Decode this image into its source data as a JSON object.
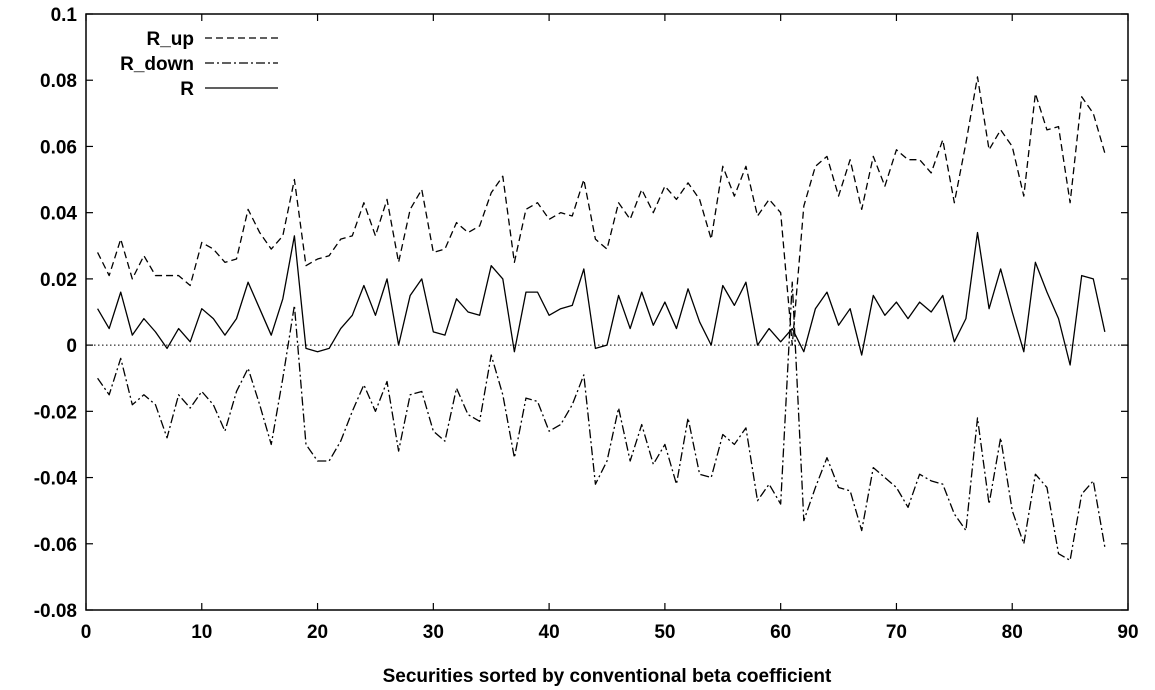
{
  "chart_data": {
    "type": "line",
    "title": "",
    "xlabel": "Securities sorted by conventional beta coefficient",
    "ylabel": "",
    "xlim": [
      0,
      90
    ],
    "ylim": [
      -0.08,
      0.1
    ],
    "xticks": [
      0,
      10,
      20,
      30,
      40,
      50,
      60,
      70,
      80,
      90
    ],
    "yticks": [
      -0.08,
      -0.06,
      -0.04,
      -0.02,
      0,
      0.02,
      0.04,
      0.06,
      0.08,
      0.1
    ],
    "xtick_labels": [
      "0",
      "10",
      "20",
      "30",
      "40",
      "50",
      "60",
      "70",
      "80",
      "90"
    ],
    "ytick_labels": [
      "-0.08",
      "-0.06",
      "-0.04",
      "-0.02",
      "0",
      "0.02",
      "0.04",
      "0.06",
      "0.08",
      "0.1"
    ],
    "grid": false,
    "legend_position": "top-left",
    "zero_line": true,
    "series": [
      {
        "name": "R_up",
        "style": "dashed",
        "color": "#000000",
        "x": [
          1,
          2,
          3,
          4,
          5,
          6,
          7,
          8,
          9,
          10,
          11,
          12,
          13,
          14,
          15,
          16,
          17,
          18,
          19,
          20,
          21,
          22,
          23,
          24,
          25,
          26,
          27,
          28,
          29,
          30,
          31,
          32,
          33,
          34,
          35,
          36,
          37,
          38,
          39,
          40,
          41,
          42,
          43,
          44,
          45,
          46,
          47,
          48,
          49,
          50,
          51,
          52,
          53,
          54,
          55,
          56,
          57,
          58,
          59,
          60,
          61,
          62,
          63,
          64,
          65,
          66,
          67,
          68,
          69,
          70,
          71,
          72,
          73,
          74,
          75,
          76,
          77,
          78,
          79,
          80,
          81,
          82,
          83,
          84,
          85,
          86,
          87,
          88
        ],
        "values": [
          0.028,
          0.021,
          0.032,
          0.02,
          0.027,
          0.021,
          0.021,
          0.021,
          0.018,
          0.031,
          0.029,
          0.025,
          0.026,
          0.041,
          0.034,
          0.029,
          0.033,
          0.05,
          0.024,
          0.026,
          0.027,
          0.032,
          0.033,
          0.043,
          0.033,
          0.044,
          0.025,
          0.041,
          0.047,
          0.028,
          0.029,
          0.037,
          0.034,
          0.036,
          0.046,
          0.051,
          0.025,
          0.041,
          0.043,
          0.038,
          0.04,
          0.039,
          0.05,
          0.032,
          0.029,
          0.043,
          0.038,
          0.047,
          0.04,
          0.048,
          0.044,
          0.049,
          0.044,
          0.032,
          0.054,
          0.045,
          0.054,
          0.039,
          0.044,
          0.04,
          0.0,
          0.042,
          0.054,
          0.057,
          0.045,
          0.056,
          0.041,
          0.057,
          0.048,
          0.059,
          0.056,
          0.056,
          0.052,
          0.062,
          0.043,
          0.061,
          0.081,
          0.059,
          0.065,
          0.06,
          0.045,
          0.076,
          0.065,
          0.066,
          0.043,
          0.075,
          0.07,
          0.058
        ]
      },
      {
        "name": "R_down",
        "style": "dashdot",
        "color": "#000000",
        "x": [
          1,
          2,
          3,
          4,
          5,
          6,
          7,
          8,
          9,
          10,
          11,
          12,
          13,
          14,
          15,
          16,
          17,
          18,
          19,
          20,
          21,
          22,
          23,
          24,
          25,
          26,
          27,
          28,
          29,
          30,
          31,
          32,
          33,
          34,
          35,
          36,
          37,
          38,
          39,
          40,
          41,
          42,
          43,
          44,
          45,
          46,
          47,
          48,
          49,
          50,
          51,
          52,
          53,
          54,
          55,
          56,
          57,
          58,
          59,
          60,
          61,
          62,
          63,
          64,
          65,
          66,
          67,
          68,
          69,
          70,
          71,
          72,
          73,
          74,
          75,
          76,
          77,
          78,
          79,
          80,
          81,
          82,
          83,
          84,
          85,
          86,
          87,
          88
        ],
        "values": [
          -0.01,
          -0.015,
          -0.004,
          -0.018,
          -0.015,
          -0.018,
          -0.028,
          -0.015,
          -0.019,
          -0.014,
          -0.018,
          -0.026,
          -0.014,
          -0.007,
          -0.018,
          -0.03,
          -0.01,
          0.012,
          -0.03,
          -0.035,
          -0.035,
          -0.029,
          -0.02,
          -0.012,
          -0.02,
          -0.011,
          -0.032,
          -0.015,
          -0.014,
          -0.026,
          -0.029,
          -0.013,
          -0.021,
          -0.023,
          -0.003,
          -0.015,
          -0.034,
          -0.016,
          -0.017,
          -0.026,
          -0.024,
          -0.018,
          -0.009,
          -0.042,
          -0.035,
          -0.019,
          -0.035,
          -0.024,
          -0.036,
          -0.03,
          -0.042,
          -0.022,
          -0.039,
          -0.04,
          -0.027,
          -0.03,
          -0.025,
          -0.047,
          -0.042,
          -0.048,
          0.019,
          -0.053,
          -0.043,
          -0.034,
          -0.043,
          -0.044,
          -0.056,
          -0.037,
          -0.04,
          -0.043,
          -0.049,
          -0.039,
          -0.041,
          -0.042,
          -0.051,
          -0.056,
          -0.022,
          -0.048,
          -0.028,
          -0.05,
          -0.06,
          -0.039,
          -0.043,
          -0.063,
          -0.065,
          -0.045,
          -0.041,
          -0.061
        ]
      },
      {
        "name": "R",
        "style": "solid",
        "color": "#000000",
        "x": [
          1,
          2,
          3,
          4,
          5,
          6,
          7,
          8,
          9,
          10,
          11,
          12,
          13,
          14,
          15,
          16,
          17,
          18,
          19,
          20,
          21,
          22,
          23,
          24,
          25,
          26,
          27,
          28,
          29,
          30,
          31,
          32,
          33,
          34,
          35,
          36,
          37,
          38,
          39,
          40,
          41,
          42,
          43,
          44,
          45,
          46,
          47,
          48,
          49,
          50,
          51,
          52,
          53,
          54,
          55,
          56,
          57,
          58,
          59,
          60,
          61,
          62,
          63,
          64,
          65,
          66,
          67,
          68,
          69,
          70,
          71,
          72,
          73,
          74,
          75,
          76,
          77,
          78,
          79,
          80,
          81,
          82,
          83,
          84,
          85,
          86,
          87,
          88
        ],
        "values": [
          0.011,
          0.005,
          0.016,
          0.003,
          0.008,
          0.004,
          -0.001,
          0.005,
          0.001,
          0.011,
          0.008,
          0.003,
          0.008,
          0.019,
          0.011,
          0.003,
          0.014,
          0.033,
          -0.001,
          -0.002,
          -0.001,
          0.005,
          0.009,
          0.018,
          0.009,
          0.02,
          0.0,
          0.015,
          0.02,
          0.004,
          0.003,
          0.014,
          0.01,
          0.009,
          0.024,
          0.02,
          -0.002,
          0.016,
          0.016,
          0.009,
          0.011,
          0.012,
          0.023,
          -0.001,
          0.0,
          0.015,
          0.005,
          0.016,
          0.006,
          0.013,
          0.005,
          0.017,
          0.007,
          0.0,
          0.018,
          0.012,
          0.019,
          0.0,
          0.005,
          0.001,
          0.005,
          -0.002,
          0.011,
          0.016,
          0.006,
          0.011,
          -0.003,
          0.015,
          0.009,
          0.013,
          0.008,
          0.013,
          0.01,
          0.015,
          0.001,
          0.008,
          0.034,
          0.011,
          0.023,
          0.01,
          -0.002,
          0.025,
          0.016,
          0.008,
          -0.006,
          0.021,
          0.02,
          0.004
        ]
      }
    ]
  }
}
